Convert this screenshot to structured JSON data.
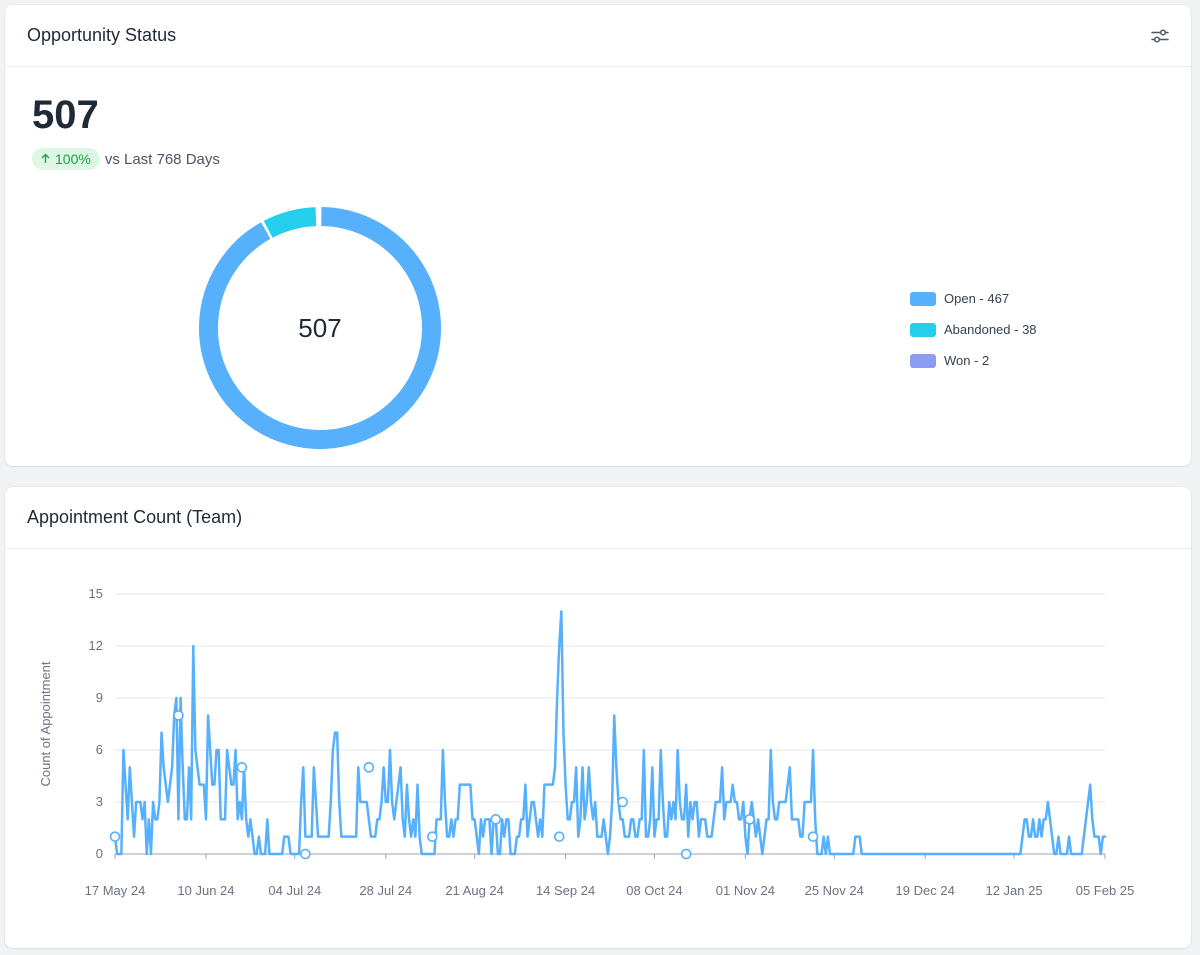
{
  "opportunity": {
    "title": "Opportunity Status",
    "total": "507",
    "trend_percent": "100%",
    "trend_text": "vs Last 768 Days",
    "center_label": "507",
    "legend": [
      {
        "label": "Open - 467",
        "color": "#57b0fb"
      },
      {
        "label": "Abandoned - 38",
        "color": "#23cfeb"
      },
      {
        "label": "Won - 2",
        "color": "#8c9cf5"
      }
    ]
  },
  "appointments": {
    "title": "Appointment Count (Team)"
  },
  "chart_data": [
    {
      "type": "pie",
      "categories": [
        "Open",
        "Abandoned",
        "Won"
      ],
      "values": [
        467,
        38,
        2
      ],
      "colors": [
        "#57b0fb",
        "#23cfeb",
        "#8c9cf5"
      ],
      "center_text": "507",
      "legend": "right"
    },
    {
      "type": "line",
      "title": "Appointment Count (Team)",
      "xlabel": "",
      "ylabel": "Count of Appointment",
      "ylim": [
        0,
        15
      ],
      "yticks": [
        0,
        3,
        6,
        9,
        12,
        15
      ],
      "xtick_labels": [
        "17 May 24",
        "10 Jun 24",
        "04 Jul 24",
        "28 Jul 24",
        "21 Aug 24",
        "14 Sep 24",
        "08 Oct 24",
        "01 Nov 24",
        "25 Nov 24",
        "19 Dec 24",
        "12 Jan 25",
        "05 Feb 25"
      ],
      "grid": true,
      "color": "#57b0fb",
      "series": [
        {
          "values": [
            1,
            0,
            0,
            0,
            6,
            4,
            2,
            5,
            3,
            1,
            3,
            3,
            3,
            2,
            3,
            0,
            2,
            0,
            3,
            2,
            2,
            3,
            7,
            5,
            4,
            3,
            4,
            5,
            8,
            9,
            2,
            9,
            5,
            2,
            2,
            5,
            2,
            12,
            6,
            5,
            4,
            4,
            4,
            2,
            8,
            6,
            4,
            4,
            6,
            6,
            2,
            2,
            2,
            6,
            5,
            4,
            4,
            6,
            2,
            3,
            2,
            5,
            2,
            1,
            2,
            1,
            0,
            0,
            1,
            0,
            0,
            0,
            2,
            0,
            0,
            0,
            0,
            0,
            0,
            0,
            1,
            1,
            1,
            0,
            0,
            0,
            0,
            0,
            3,
            5,
            1,
            1,
            1,
            1,
            5,
            3,
            1,
            1,
            1,
            1,
            1,
            1,
            3,
            6,
            7,
            7,
            3,
            1,
            1,
            1,
            1,
            1,
            1,
            1,
            1,
            5,
            3,
            3,
            3,
            3,
            2,
            1,
            1,
            1,
            2,
            2,
            3,
            5,
            3,
            3,
            6,
            3,
            2,
            3,
            4,
            5,
            2,
            1,
            4,
            2,
            1,
            2,
            1,
            4,
            1,
            0,
            0,
            0,
            0,
            0,
            0,
            0,
            2,
            2,
            2,
            6,
            3,
            1,
            1,
            2,
            1,
            2,
            2,
            4,
            4,
            4,
            4,
            4,
            4,
            2,
            2,
            1,
            0,
            2,
            1,
            2,
            2,
            2,
            0,
            2,
            2,
            0,
            0,
            2,
            1,
            2,
            2,
            0,
            0,
            0,
            1,
            1,
            2,
            2,
            4,
            1,
            2,
            3,
            3,
            2,
            1,
            2,
            1,
            4,
            4,
            4,
            4,
            4,
            5,
            9,
            12,
            14,
            7,
            4,
            2,
            2,
            3,
            3,
            5,
            1,
            2,
            5,
            2,
            3,
            5,
            3,
            2,
            3,
            1,
            1,
            1,
            2,
            1,
            0,
            1,
            3,
            8,
            5,
            3,
            2,
            2,
            1,
            1,
            1,
            2,
            2,
            1,
            1,
            2,
            2,
            6,
            1,
            1,
            2,
            5,
            1,
            2,
            2,
            6,
            3,
            1,
            1,
            3,
            2,
            3,
            2,
            6,
            3,
            2,
            2,
            4,
            1,
            3,
            2,
            3,
            3,
            1,
            2,
            2,
            2,
            1,
            1,
            1,
            2,
            3,
            3,
            3,
            5,
            2,
            3,
            3,
            3,
            4,
            3,
            3,
            2,
            2,
            3,
            1,
            0,
            2,
            3,
            2,
            1,
            2,
            1,
            0,
            1,
            2,
            2,
            6,
            3,
            2,
            2,
            3,
            3,
            3,
            3,
            4,
            5,
            2,
            2,
            2,
            2,
            1,
            1,
            3,
            3,
            3,
            3,
            6,
            2,
            0,
            0,
            0,
            1,
            0,
            1,
            0,
            0,
            0,
            0,
            0,
            0,
            0,
            0,
            0,
            0,
            0,
            0,
            1,
            1,
            1,
            0,
            0,
            0,
            0,
            0,
            0,
            0,
            0,
            0,
            0,
            0,
            0,
            0,
            0,
            0,
            0,
            0,
            0,
            0,
            0,
            0,
            0,
            0,
            0,
            0,
            0,
            0,
            0,
            0,
            0,
            0,
            0,
            0,
            0,
            0,
            0,
            0,
            0,
            0,
            0,
            0,
            0,
            0,
            0,
            0,
            0,
            0,
            0,
            0,
            0,
            0,
            0,
            0,
            0,
            0,
            0,
            0,
            0,
            0,
            0,
            0,
            0,
            0,
            0,
            0,
            0,
            0,
            0,
            0,
            0,
            0,
            0,
            0,
            0,
            0,
            0,
            1,
            2,
            2,
            1,
            1,
            2,
            1,
            1,
            2,
            1,
            2,
            2,
            3,
            2,
            1,
            0,
            0,
            1,
            0,
            0,
            0,
            0,
            1,
            0,
            0,
            0,
            0,
            0,
            0,
            1,
            2,
            3,
            4,
            2,
            1,
            1,
            1,
            0,
            1,
            1
          ]
        }
      ],
      "markers": [
        {
          "x": 0,
          "y": 1
        },
        {
          "x": 30,
          "y": 8
        },
        {
          "x": 60,
          "y": 5
        },
        {
          "x": 90,
          "y": 0
        },
        {
          "x": 120,
          "y": 5
        },
        {
          "x": 150,
          "y": 1
        },
        {
          "x": 180,
          "y": 2
        },
        {
          "x": 210,
          "y": 1
        },
        {
          "x": 240,
          "y": 3
        },
        {
          "x": 270,
          "y": 0
        },
        {
          "x": 300,
          "y": 2
        },
        {
          "x": 330,
          "y": 1
        }
      ]
    }
  ]
}
